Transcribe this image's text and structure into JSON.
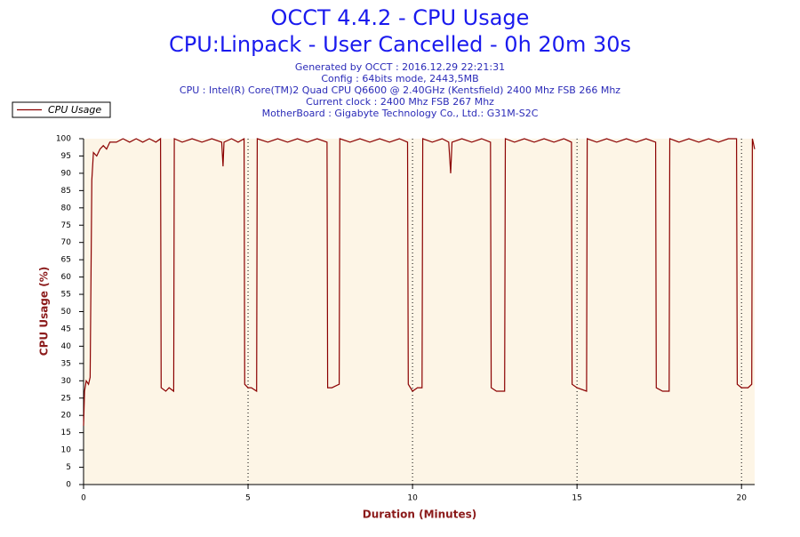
{
  "chart_data": {
    "type": "line",
    "title": "OCCT 4.4.2 - CPU Usage",
    "subtitle": "CPU:Linpack - User Cancelled - 0h 20m 30s",
    "info": [
      "Generated by OCCT : 2016.12.29 22:21:31",
      "Config : 64bits mode, 2443,5MB",
      "CPU : Intel(R) Core(TM)2 Quad CPU Q6600 @ 2.40GHz (Kentsfield) 2400 Mhz FSB 266 Mhz",
      "Current clock : 2400 Mhz FSB 267 Mhz",
      "MotherBoard : Gigabyte Technology Co., Ltd.: G31M-S2C"
    ],
    "xlabel": "Duration (Minutes)",
    "ylabel": "CPU Usage (%)",
    "xlim": [
      0,
      20.4
    ],
    "ylim": [
      0,
      100
    ],
    "xticks": [
      0,
      5,
      10,
      15,
      20
    ],
    "yticks": [
      0,
      5,
      10,
      15,
      20,
      25,
      30,
      35,
      40,
      45,
      50,
      55,
      60,
      65,
      70,
      75,
      80,
      85,
      90,
      95,
      100
    ],
    "xgrid": true,
    "legend": "top-left",
    "x": [
      0,
      0.03,
      0.08,
      0.15,
      0.2,
      0.25,
      0.3,
      0.4,
      0.5,
      0.6,
      0.7,
      0.8,
      1.0,
      1.2,
      1.4,
      1.6,
      1.8,
      2.0,
      2.2,
      2.34,
      2.36,
      2.5,
      2.6,
      2.74,
      2.76,
      3.0,
      3.3,
      3.6,
      3.9,
      4.2,
      4.24,
      4.27,
      4.5,
      4.7,
      4.88,
      4.9,
      5.0,
      5.1,
      5.26,
      5.28,
      5.6,
      5.9,
      6.2,
      6.5,
      6.8,
      7.1,
      7.4,
      7.42,
      7.55,
      7.77,
      7.79,
      8.1,
      8.4,
      8.7,
      9.0,
      9.3,
      9.6,
      9.85,
      9.87,
      10.0,
      10.15,
      10.29,
      10.31,
      10.6,
      10.9,
      11.1,
      11.16,
      11.2,
      11.5,
      11.8,
      12.1,
      12.37,
      12.39,
      12.55,
      12.8,
      12.82,
      13.1,
      13.4,
      13.7,
      14.0,
      14.3,
      14.6,
      14.83,
      14.85,
      15.0,
      15.29,
      15.31,
      15.6,
      15.9,
      16.2,
      16.5,
      16.8,
      17.1,
      17.39,
      17.41,
      17.6,
      17.8,
      17.82,
      18.1,
      18.4,
      18.7,
      19.0,
      19.3,
      19.6,
      19.85,
      19.87,
      20.0,
      20.2,
      20.31,
      20.33,
      20.4
    ],
    "series": [
      {
        "name": "CPU Usage",
        "color": "#8b0000",
        "values": [
          17,
          27,
          30,
          29,
          31,
          88,
          96,
          95,
          97,
          98,
          97,
          99,
          99,
          100,
          99,
          100,
          99,
          100,
          99,
          100,
          28,
          27,
          28,
          27,
          100,
          99,
          100,
          99,
          100,
          99,
          92,
          99,
          100,
          99,
          100,
          29,
          28,
          28,
          27,
          100,
          99,
          100,
          99,
          100,
          99,
          100,
          99,
          28,
          28,
          29,
          100,
          99,
          100,
          99,
          100,
          99,
          100,
          99,
          29,
          27,
          28,
          28,
          100,
          99,
          100,
          99,
          90,
          99,
          100,
          99,
          100,
          99,
          28,
          27,
          27,
          100,
          99,
          100,
          99,
          100,
          99,
          100,
          99,
          29,
          28,
          27,
          100,
          99,
          100,
          99,
          100,
          99,
          100,
          99,
          28,
          27,
          27,
          100,
          99,
          100,
          99,
          100,
          99,
          100,
          100,
          29,
          28,
          28,
          29,
          100,
          97
        ]
      }
    ]
  }
}
